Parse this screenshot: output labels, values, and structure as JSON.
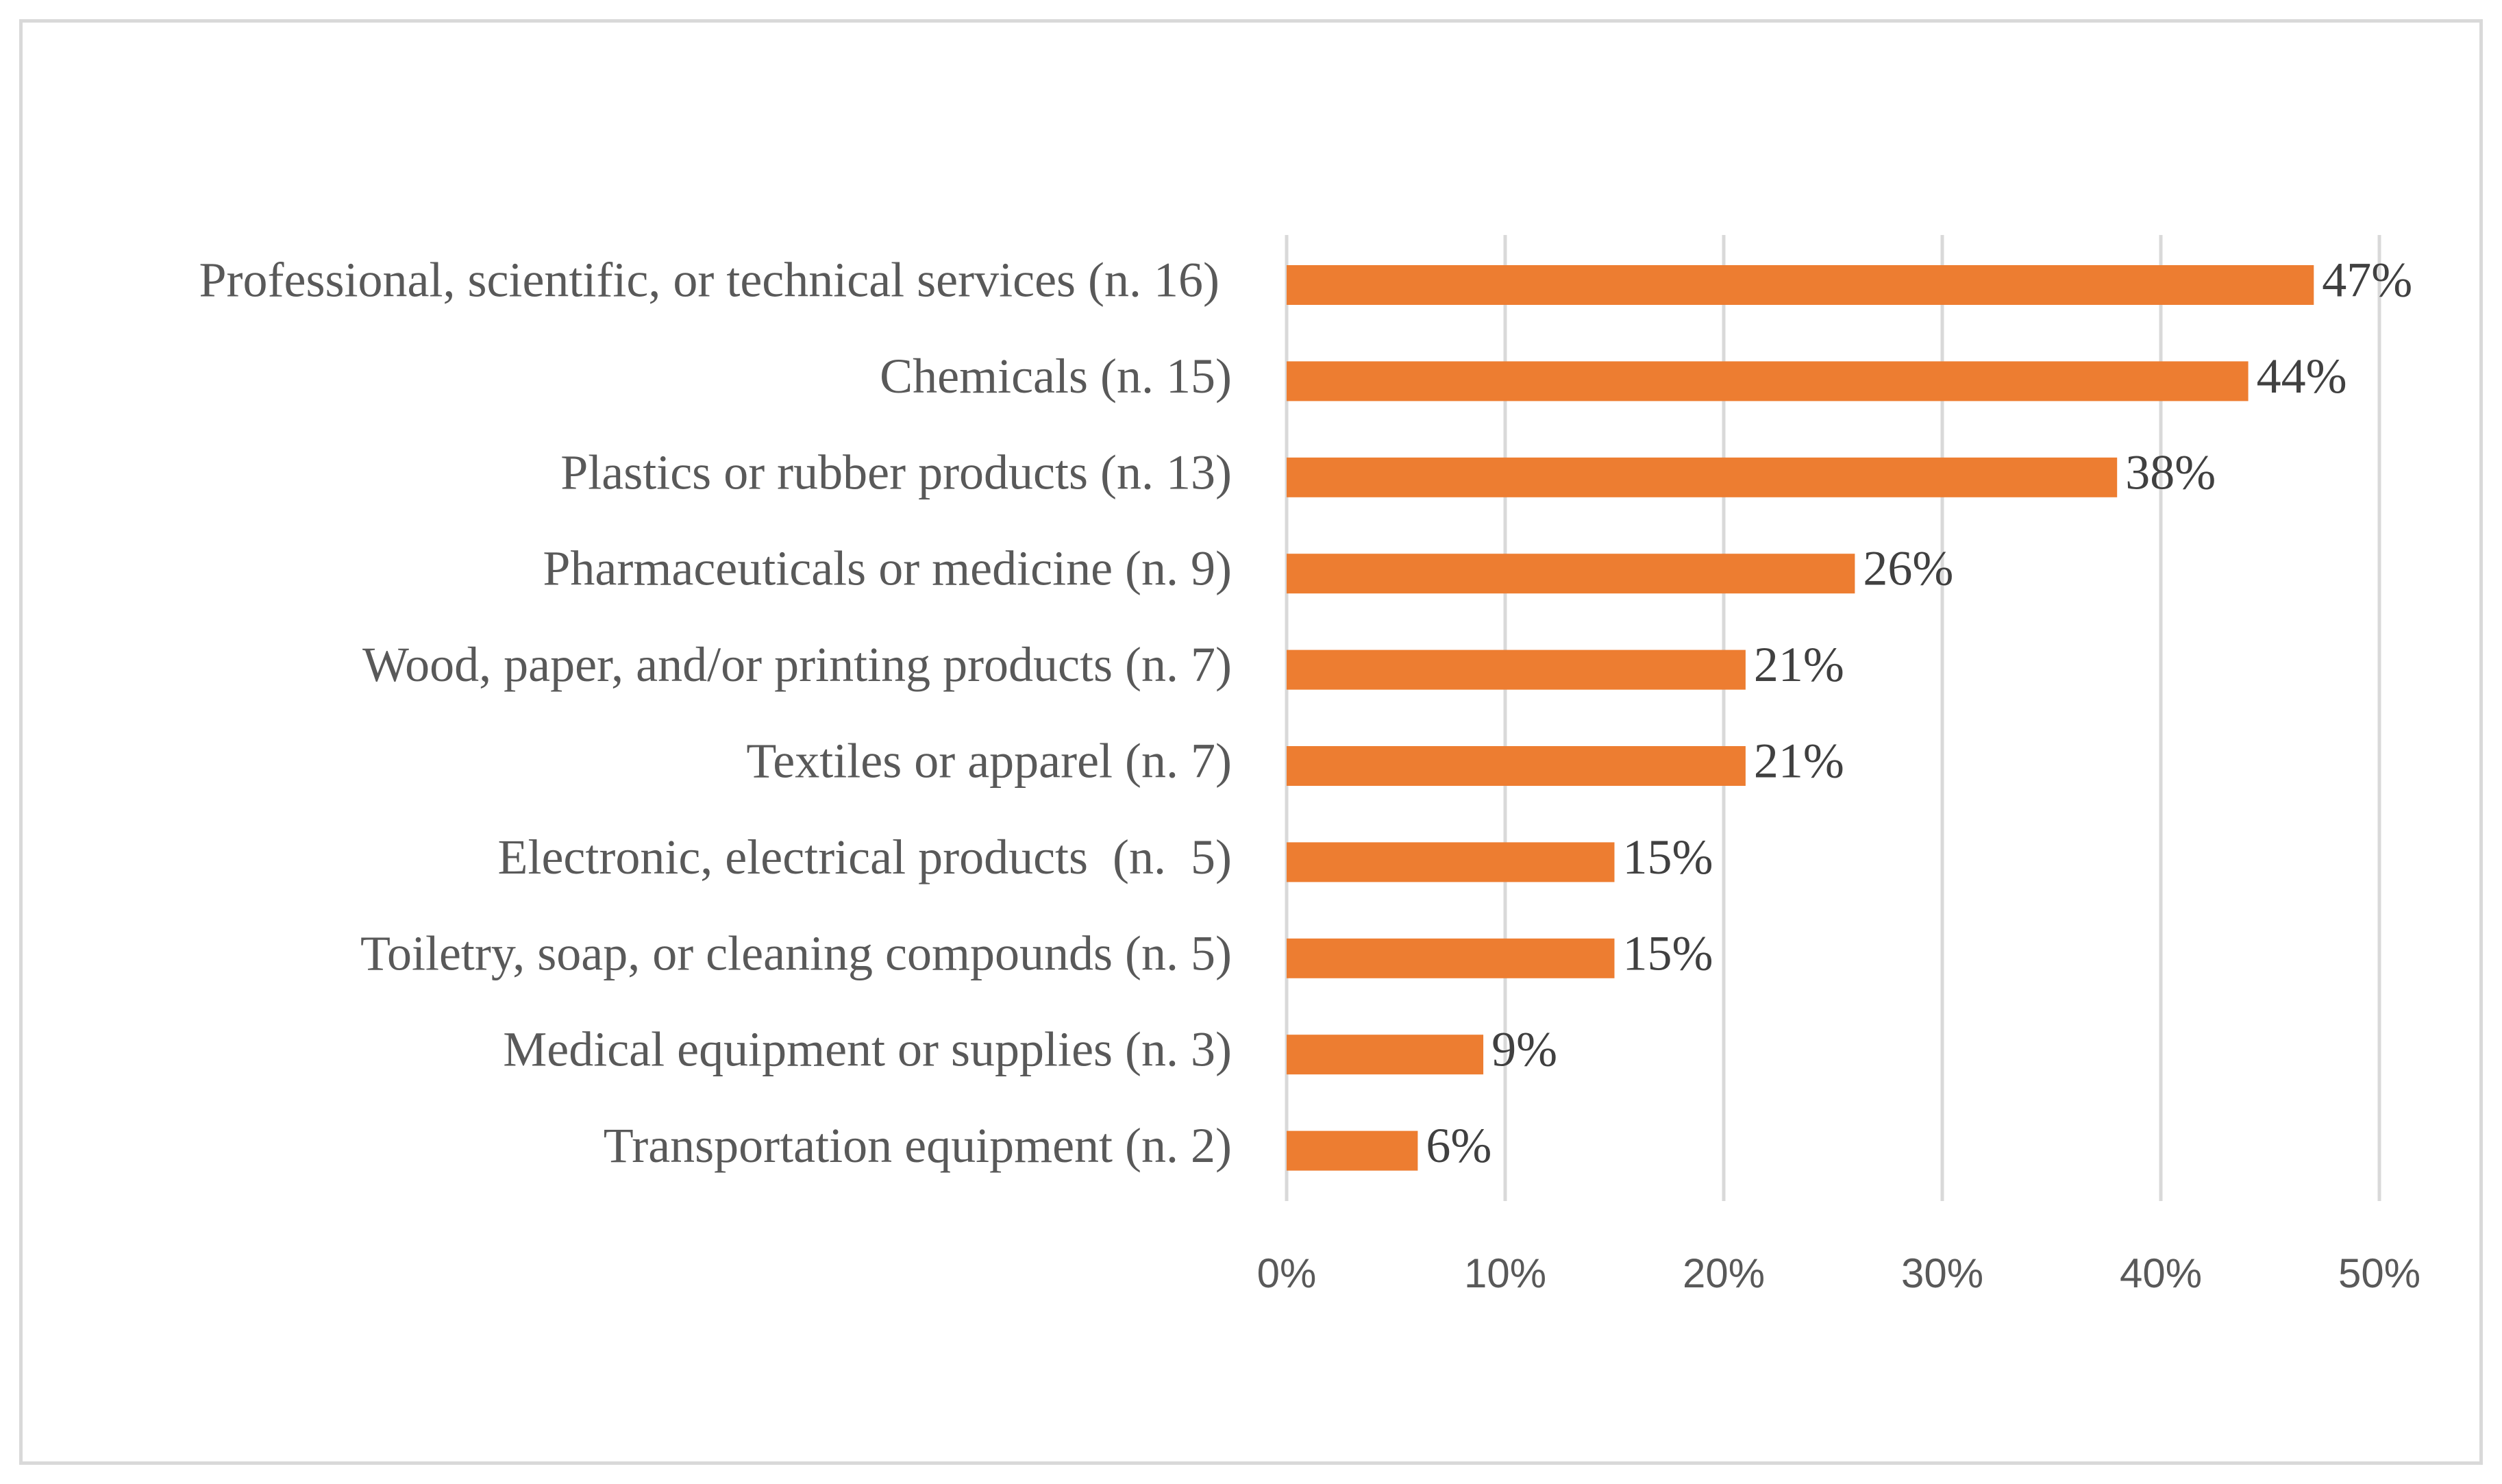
{
  "chart_data": {
    "type": "bar",
    "orientation": "horizontal",
    "title": "",
    "xlabel": "",
    "ylabel": "",
    "categories": [
      "Professional, scientific, or technical services (n. 16) ",
      "Chemicals (n. 15)",
      "Plastics or rubber products (n. 13)",
      "Pharmaceuticals or medicine (n. 9)",
      "Wood, paper, and/or printing products (n. 7)",
      "Textiles or apparel (n. 7)",
      "Electronic, electrical products  (n.  5)",
      "Toiletry, soap, or cleaning compounds (n. 5)",
      "Medical equipment or supplies (n. 3)",
      "Transportation equipment (n. 2)"
    ],
    "values": [
      47,
      44,
      38,
      26,
      21,
      21,
      15,
      15,
      9,
      6
    ],
    "data_labels": [
      "47%",
      "44%",
      "38%",
      "26%",
      "21%",
      "21%",
      "15%",
      "15%",
      "9%",
      "6%"
    ],
    "x_ticks": [
      "0%",
      "10%",
      "20%",
      "30%",
      "40%",
      "50%"
    ],
    "xlim": [
      0,
      50
    ],
    "grid": true,
    "legend": "none",
    "colors": {
      "bar": "#ed7d31",
      "grid": "#d9d9d9",
      "label_text": "#595959",
      "value_text": "#404040"
    }
  }
}
